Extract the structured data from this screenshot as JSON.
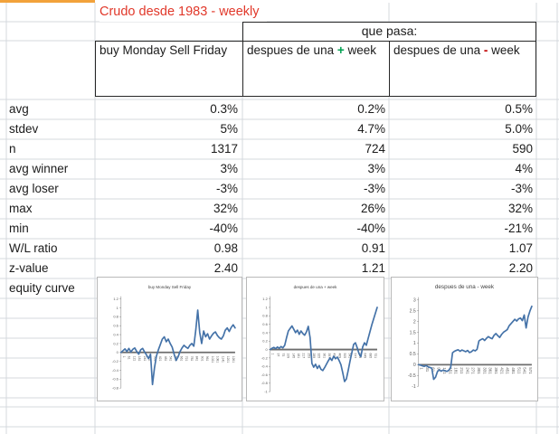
{
  "title": "Crudo desde 1983 - weekly",
  "header": {
    "que_pasa": "que pasa:",
    "columns": [
      {
        "label": "buy Monday Sell Friday"
      },
      {
        "label_prefix": "despues de una ",
        "sign": "+",
        "label_suffix": " week"
      },
      {
        "label_prefix": "despues de una ",
        "sign": "-",
        "label_suffix": " week"
      }
    ]
  },
  "table": {
    "rows": [
      {
        "label": "avg",
        "values": [
          "0.3%",
          "0.2%",
          "0.5%"
        ]
      },
      {
        "label": "stdev",
        "values": [
          "5%",
          "4.7%",
          "5.0%"
        ]
      },
      {
        "label": "n",
        "values": [
          "1317",
          "724",
          "590"
        ]
      },
      {
        "label": "avg winner",
        "values": [
          "3%",
          "3%",
          "4%"
        ]
      },
      {
        "label": "avg loser",
        "values": [
          "-3%",
          "-3%",
          "-3%"
        ]
      },
      {
        "label": "max",
        "values": [
          "32%",
          "26%",
          "32%"
        ]
      },
      {
        "label": "min",
        "values": [
          "-40%",
          "-40%",
          "-21%"
        ]
      },
      {
        "label": "W/L ratio",
        "values": [
          "0.98",
          "0.91",
          "1.07"
        ]
      },
      {
        "label": "z-value",
        "values": [
          "2.40",
          "1.21",
          "2.20"
        ]
      }
    ],
    "equity_row_label": "equity curve"
  },
  "colors": {
    "orange_bar": "#F2A23B",
    "title_red": "#E1382A",
    "plus_green": "#00A050",
    "minus_red": "#C00000",
    "line_blue": "#4472A8",
    "zero_line": "#6E6E6E",
    "axis_gray": "#8C8C8C",
    "tick_label_gray": "#595959",
    "gridline": "#D4D9DE"
  },
  "chart_data": [
    {
      "type": "line",
      "title": "buy Monday Sell Friday",
      "ylim": [
        -0.8,
        1.2
      ],
      "yticks": [
        "1.2",
        "1",
        "0.8",
        "0.6",
        "0.4",
        "0.2",
        "0",
        "-0.2",
        "-0.4",
        "-0.6",
        "-0.8"
      ],
      "xlabels": [
        "1",
        "61",
        "121",
        "181",
        "241",
        "301",
        "361",
        "421",
        "481",
        "541",
        "601",
        "661",
        "721",
        "781",
        "841",
        "901",
        "961",
        "1021",
        "1081",
        "1141",
        "1201",
        "1261"
      ],
      "values": [
        0,
        0.04,
        0.08,
        0.02,
        0.09,
        0.01,
        0.07,
        0.1,
        0.02,
        -0.04,
        0.06,
        0.09,
        0.01,
        -0.06,
        -0.14,
        -0.04,
        -0.72,
        -0.35,
        -0.08,
        0.06,
        0.18,
        0.3,
        0.35,
        0.24,
        0.3,
        0.2,
        0.12,
        -0.04,
        -0.18,
        -0.1,
        0.02,
        0.1,
        0.16,
        0.12,
        0.09,
        0.16,
        0.2,
        0.14,
        0.5,
        0.95,
        0.45,
        0.2,
        0.48,
        0.35,
        0.42,
        0.3,
        0.37,
        0.43,
        0.46,
        0.38,
        0.33,
        0.3,
        0.37,
        0.5,
        0.55,
        0.47,
        0.56,
        0.62,
        0.55
      ]
    },
    {
      "type": "line",
      "title": "despues de una + week",
      "ylim": [
        -1,
        1.2
      ],
      "yticks": [
        "1.2",
        "1",
        "0.8",
        "0.6",
        "0.4",
        "0.2",
        "0",
        "-0.2",
        "-0.4",
        "-0.6",
        "-0.8",
        "-1"
      ],
      "xlabels": [
        "1",
        "37",
        "73",
        "109",
        "145",
        "181",
        "217",
        "253",
        "289",
        "325",
        "361",
        "397",
        "433",
        "469",
        "505",
        "541",
        "577",
        "613",
        "649",
        "685",
        "721"
      ],
      "values": [
        0,
        0.03,
        0.05,
        0.02,
        0.06,
        0.03,
        0.07,
        0.04,
        0.1,
        0.28,
        0.44,
        0.5,
        0.56,
        0.48,
        0.4,
        0.46,
        0.36,
        0.44,
        0.38,
        0.34,
        0.42,
        0.55,
        0.28,
        -0.33,
        -0.42,
        -0.35,
        -0.45,
        -0.38,
        -0.47,
        -0.5,
        -0.43,
        -0.35,
        -0.27,
        -0.2,
        -0.26,
        -0.16,
        -0.22,
        -0.18,
        -0.26,
        -0.36,
        -0.55,
        -0.76,
        -0.7,
        -0.5,
        -0.28,
        -0.08,
        0.12,
        0.16,
        0.04,
        -0.1,
        -0.17,
        0.06,
        0.16,
        0.1,
        0.26,
        0.42,
        0.58,
        0.72,
        0.86,
        1.0
      ]
    },
    {
      "type": "line",
      "title": "despues de una - week",
      "ylim": [
        -1,
        3
      ],
      "yticks": [
        "3",
        "2.5",
        "2",
        "1.5",
        "1",
        "0.5",
        "0",
        "-0.5",
        "-1"
      ],
      "xlabels": [
        "1",
        "31",
        "61",
        "91",
        "121",
        "151",
        "181",
        "211",
        "241",
        "271",
        "301",
        "331",
        "361",
        "391",
        "421",
        "451",
        "481",
        "511",
        "541",
        "571"
      ],
      "values": [
        0,
        -0.02,
        -0.05,
        -0.08,
        -0.04,
        -0.1,
        -0.13,
        -0.16,
        -0.68,
        -0.58,
        -0.32,
        -0.24,
        -0.3,
        -0.25,
        -0.28,
        -0.31,
        -0.26,
        -0.14,
        0.55,
        0.62,
        0.66,
        0.69,
        0.62,
        0.68,
        0.64,
        0.6,
        0.66,
        0.56,
        0.6,
        0.68,
        0.64,
        0.71,
        1.1,
        1.16,
        1.2,
        1.12,
        1.22,
        1.3,
        1.24,
        1.2,
        1.36,
        1.44,
        1.34,
        1.26,
        1.4,
        1.5,
        1.56,
        1.62,
        1.8,
        1.9,
        2.0,
        2.1,
        2.02,
        2.12,
        2.16,
        2.04,
        2.3,
        1.7,
        2.2,
        2.48,
        2.7
      ]
    }
  ]
}
